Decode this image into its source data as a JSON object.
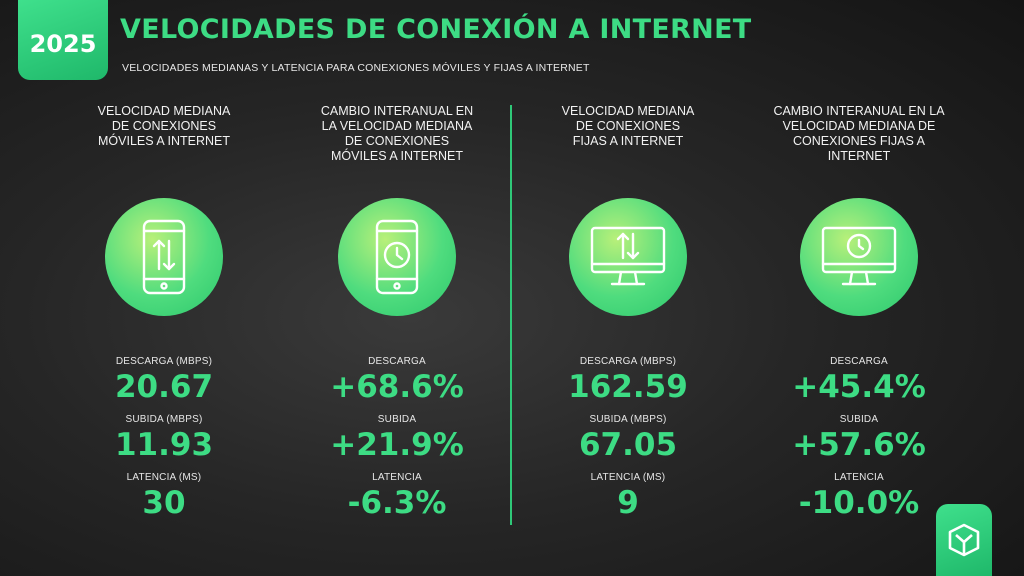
{
  "header": {
    "year": "2025",
    "title": "VELOCIDADES DE CONEXIÓN A INTERNET",
    "subtitle": "VELOCIDADES MEDIANAS Y LATENCIA PARA CONEXIONES MÓVILES Y FIJAS A INTERNET"
  },
  "columns": [
    {
      "title": "VELOCIDAD MEDIANA DE CONEXIONES MÓVILES A INTERNET",
      "icon": "mobile-transfer-icon",
      "metrics": [
        {
          "label": "DESCARGA (MBPS)",
          "value": "20.67"
        },
        {
          "label": "SUBIDA (MBPS)",
          "value": "11.93"
        },
        {
          "label": "LATENCIA (MS)",
          "value": "30"
        }
      ]
    },
    {
      "title": "CAMBIO INTERANUAL EN LA VELOCIDAD MEDIANA DE CONEXIONES MÓVILES A INTERNET",
      "icon": "mobile-clock-icon",
      "metrics": [
        {
          "label": "DESCARGA",
          "value": "+68.6%"
        },
        {
          "label": "SUBIDA",
          "value": "+21.9%"
        },
        {
          "label": "LATENCIA",
          "value": "-6.3%"
        }
      ]
    },
    {
      "title": "VELOCIDAD MEDIANA DE CONEXIONES FIJAS A INTERNET",
      "icon": "monitor-transfer-icon",
      "metrics": [
        {
          "label": "DESCARGA (MBPS)",
          "value": "162.59"
        },
        {
          "label": "SUBIDA (MBPS)",
          "value": "67.05"
        },
        {
          "label": "LATENCIA (MS)",
          "value": "9"
        }
      ]
    },
    {
      "title": "CAMBIO INTERANUAL EN LA VELOCIDAD MEDIANA DE CONEXIONES FIJAS A INTERNET",
      "icon": "monitor-clock-icon",
      "metrics": [
        {
          "label": "DESCARGA",
          "value": "+45.4%"
        },
        {
          "label": "SUBIDA",
          "value": "+57.6%"
        },
        {
          "label": "LATENCIA",
          "value": "-10.0%"
        }
      ]
    }
  ],
  "colors": {
    "accent": "#3ddc84",
    "background": "#262626"
  },
  "footer": {
    "logo_icon": "brand-logo-icon"
  }
}
